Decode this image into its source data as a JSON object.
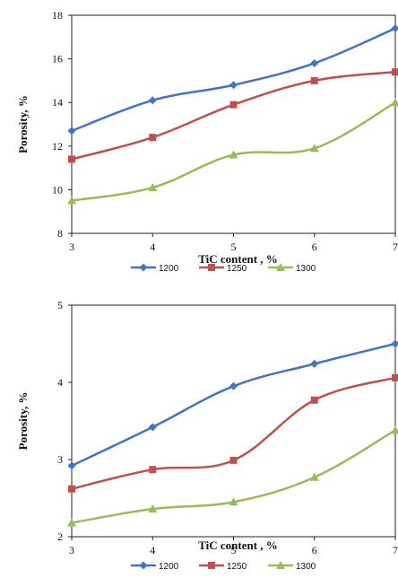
{
  "colors": {
    "1200": "#4472C4",
    "1250": "#C0504D",
    "1300": "#9BBB59"
  },
  "chart_data": [
    {
      "type": "line",
      "xlabel": "TiC content , %",
      "ylabel": "Porosity, %",
      "x": [
        3,
        4,
        5,
        6,
        7
      ],
      "xlim": [
        3,
        7
      ],
      "ylim": [
        8,
        18
      ],
      "yticks": [
        8,
        10,
        12,
        14,
        16,
        18
      ],
      "xticks": [
        3,
        4,
        5,
        6,
        7
      ],
      "grid": false,
      "legend": "bottom",
      "series": [
        {
          "name": "1200",
          "values": [
            12.7,
            14.1,
            14.8,
            15.8,
            17.4
          ],
          "marker": "diamond"
        },
        {
          "name": "1250",
          "values": [
            11.4,
            12.4,
            13.9,
            15.0,
            15.4
          ],
          "marker": "square"
        },
        {
          "name": "1300",
          "values": [
            9.5,
            10.1,
            11.6,
            11.9,
            14.0
          ],
          "marker": "triangle"
        }
      ]
    },
    {
      "type": "line",
      "xlabel": "TiC content , %",
      "ylabel": "Porosity, %",
      "x": [
        3,
        4,
        5,
        6,
        7
      ],
      "xlim": [
        3,
        7
      ],
      "ylim": [
        2,
        5
      ],
      "yticks": [
        2,
        3,
        4,
        5
      ],
      "xticks": [
        3,
        4,
        5,
        6,
        7
      ],
      "grid": false,
      "legend": "bottom",
      "series": [
        {
          "name": "1200",
          "values": [
            2.92,
            3.42,
            3.95,
            4.24,
            4.5
          ],
          "marker": "diamond"
        },
        {
          "name": "1250",
          "values": [
            2.62,
            2.87,
            2.99,
            3.77,
            4.06
          ],
          "marker": "square"
        },
        {
          "name": "1300",
          "values": [
            2.18,
            2.36,
            2.45,
            2.77,
            3.38
          ],
          "marker": "triangle"
        }
      ]
    }
  ]
}
